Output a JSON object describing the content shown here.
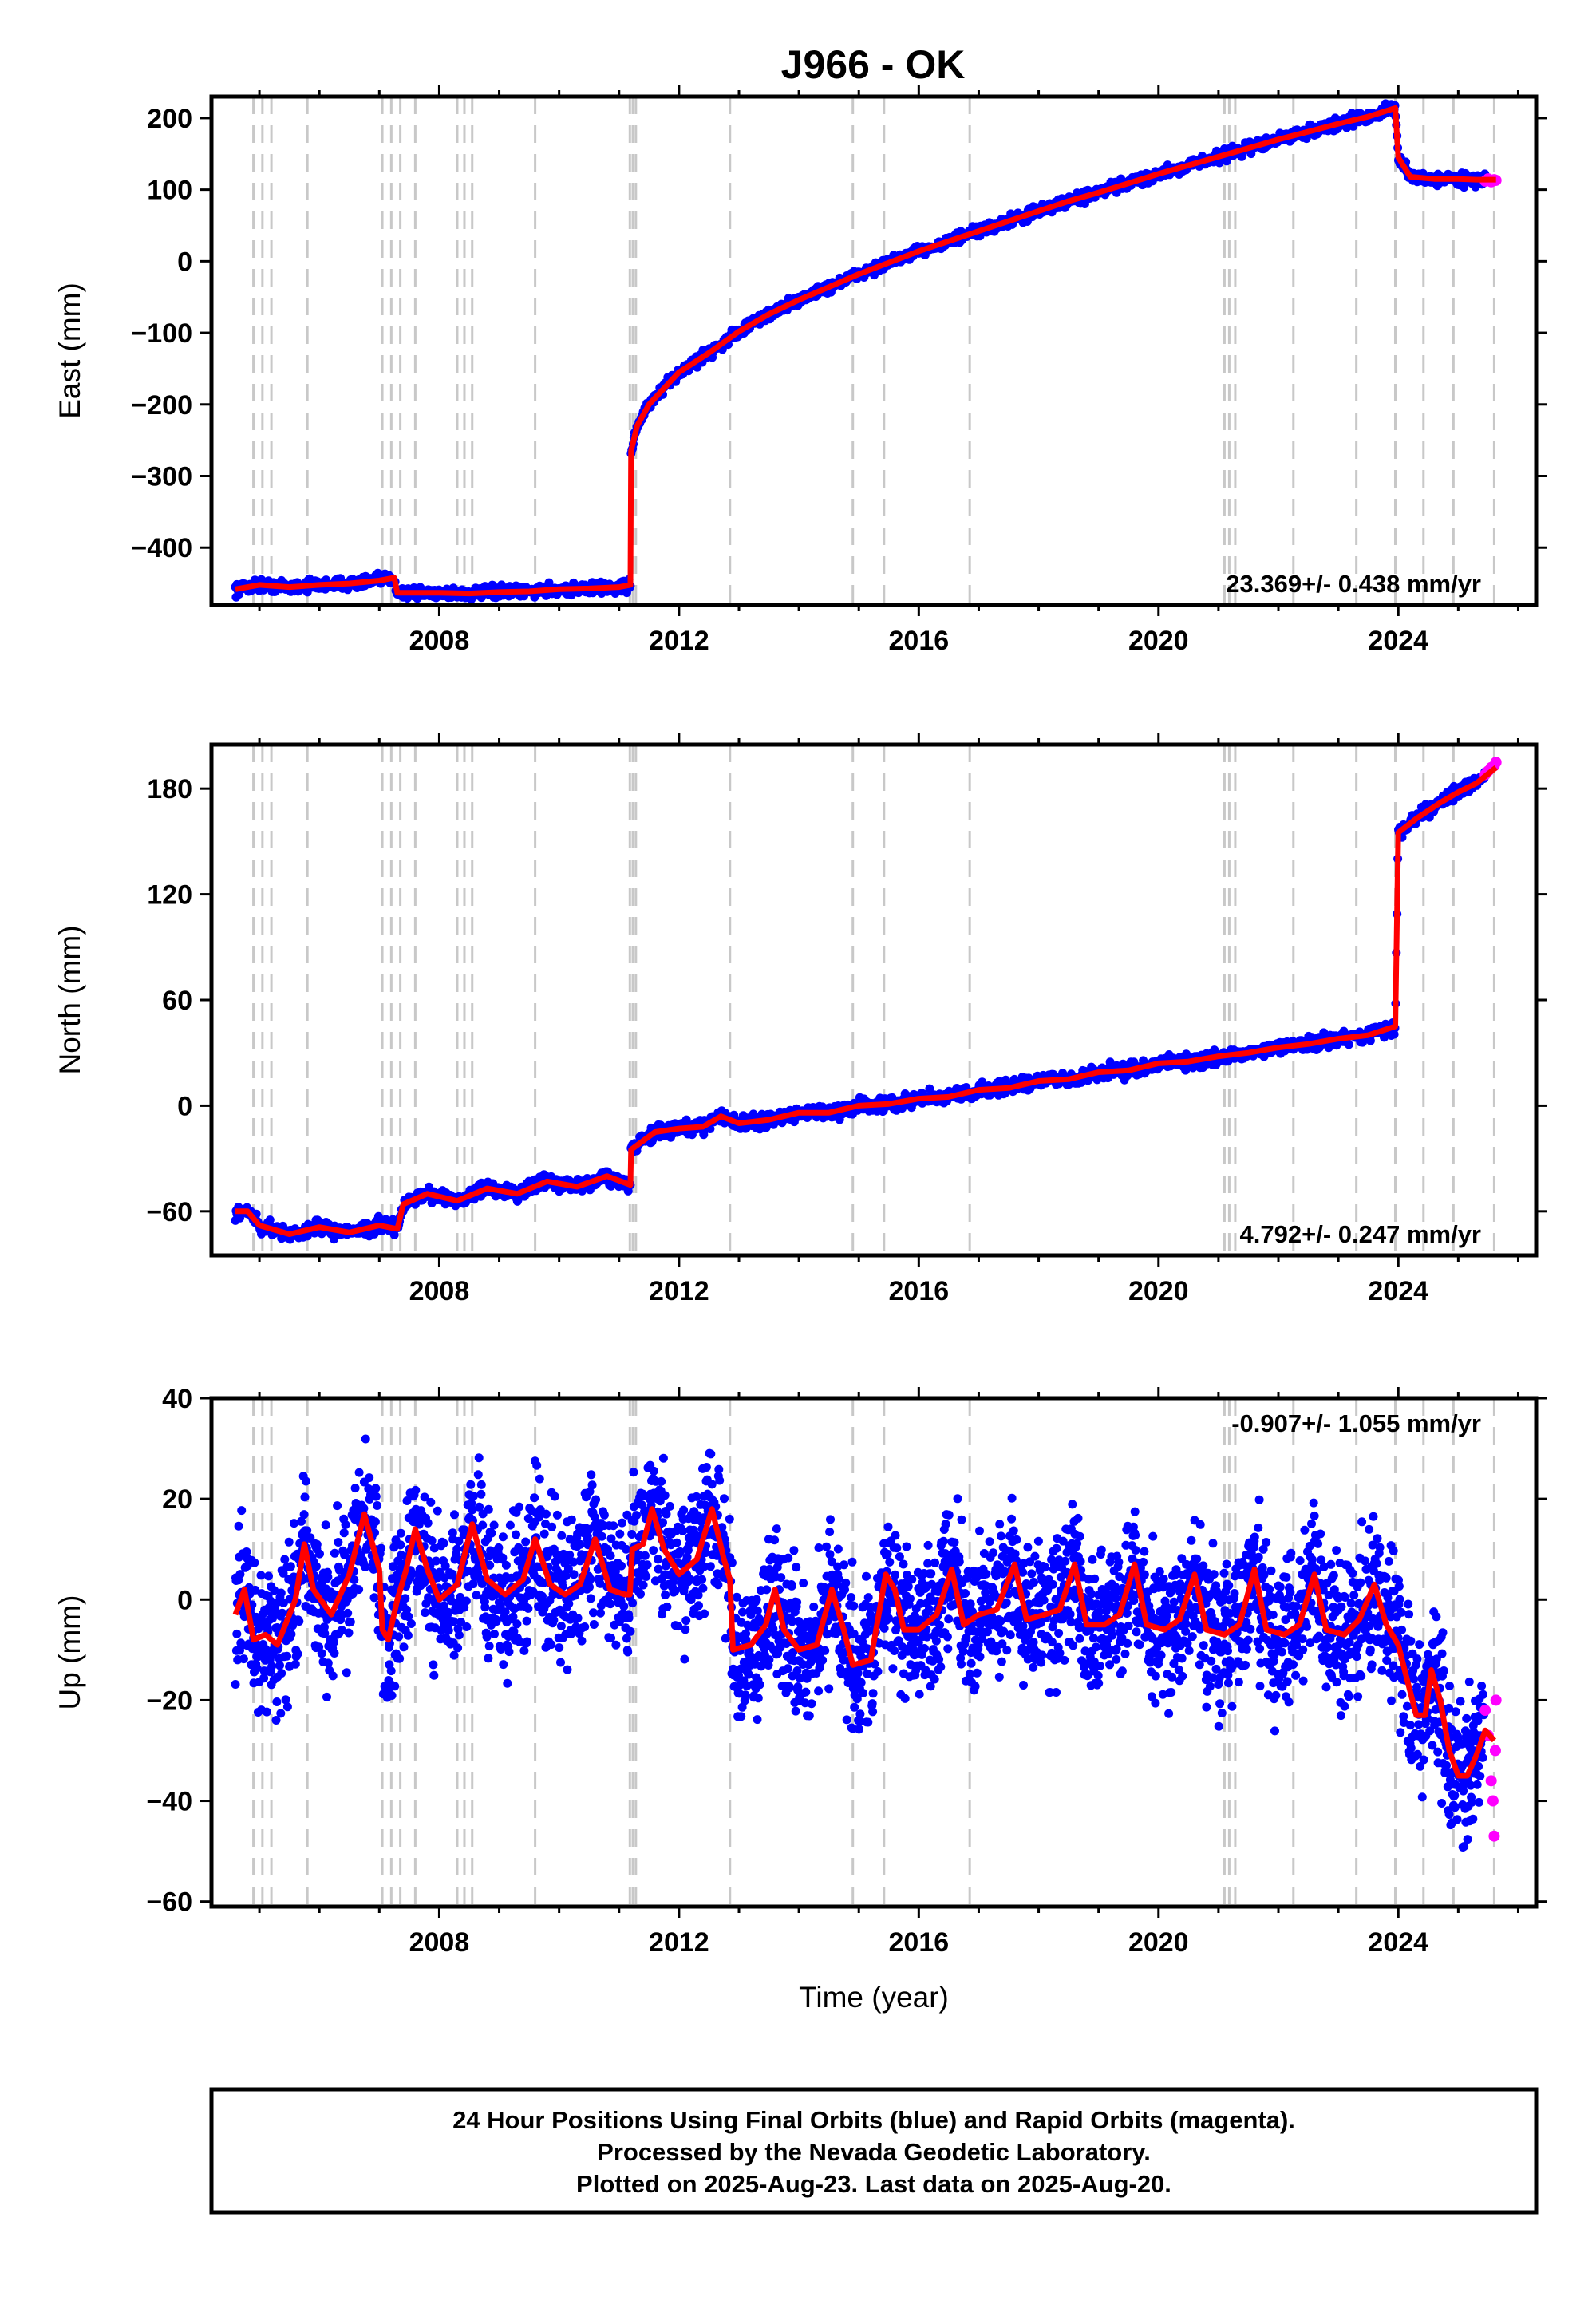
{
  "title": "J966 - OK",
  "footer": {
    "line1": "24 Hour Positions Using Final Orbits (blue) and Rapid Orbits (magenta).",
    "line2": "Processed by the Nevada Geodetic Laboratory.",
    "line3": "Plotted on 2025-Aug-23. Last data on 2025-Aug-20."
  },
  "colors": {
    "final_points": "#0000ff",
    "rapid_points": "#ff00ff",
    "model_fit": "#ff0000",
    "event_lines": "#c8c8c8"
  },
  "chart_data": [
    {
      "type": "scatter",
      "component": "East",
      "ylabel": "East (mm)",
      "xlabel": "",
      "xlim": [
        2004.2,
        2026.3
      ],
      "ylim": [
        -480,
        230
      ],
      "yticks": [
        -400,
        -300,
        -200,
        -100,
        0,
        100,
        200
      ],
      "xticks": [
        2008,
        2012,
        2016,
        2020,
        2024
      ],
      "grid": false,
      "rate_text": "23.369+/- 0.438 mm/yr",
      "rate_position": "bottom-right",
      "fit": [
        [
          2004.6,
          -458
        ],
        [
          2005.0,
          -452
        ],
        [
          2005.5,
          -455
        ],
        [
          2006.0,
          -452
        ],
        [
          2006.5,
          -450
        ],
        [
          2007.0,
          -446
        ],
        [
          2007.25,
          -442
        ],
        [
          2007.3,
          -463
        ],
        [
          2008.0,
          -463
        ],
        [
          2008.5,
          -464
        ],
        [
          2009.0,
          -462
        ],
        [
          2009.5,
          -461
        ],
        [
          2010.0,
          -458
        ],
        [
          2010.5,
          -457
        ],
        [
          2011.0,
          -455
        ],
        [
          2011.19,
          -452
        ],
        [
          2011.2,
          -265
        ],
        [
          2011.3,
          -230
        ],
        [
          2011.5,
          -200
        ],
        [
          2012.0,
          -155
        ],
        [
          2012.5,
          -128
        ],
        [
          2013.0,
          -98
        ],
        [
          2013.5,
          -74
        ],
        [
          2014.0,
          -54
        ],
        [
          2014.5,
          -36
        ],
        [
          2015.0,
          -18
        ],
        [
          2015.5,
          -2
        ],
        [
          2016.0,
          14
        ],
        [
          2016.5,
          28
        ],
        [
          2017.0,
          42
        ],
        [
          2017.5,
          56
        ],
        [
          2018.0,
          70
        ],
        [
          2018.5,
          84
        ],
        [
          2019.0,
          96
        ],
        [
          2019.5,
          109
        ],
        [
          2020.0,
          122
        ],
        [
          2020.5,
          134
        ],
        [
          2021.0,
          146
        ],
        [
          2021.5,
          158
        ],
        [
          2022.0,
          170
        ],
        [
          2022.5,
          181
        ],
        [
          2023.0,
          192
        ],
        [
          2023.5,
          202
        ],
        [
          2023.95,
          214
        ],
        [
          2024.0,
          145
        ],
        [
          2024.2,
          118
        ],
        [
          2024.6,
          115
        ],
        [
          2025.0,
          115
        ],
        [
          2025.3,
          114
        ],
        [
          2025.63,
          114
        ]
      ],
      "band_halfwidth_mm": 4,
      "rapid_points": [
        [
          2025.45,
          112
        ],
        [
          2025.5,
          115
        ],
        [
          2025.55,
          111
        ],
        [
          2025.6,
          114
        ],
        [
          2025.63,
          113
        ]
      ],
      "event_lines": [
        2004.9,
        2005.05,
        2005.2,
        2005.8,
        2007.05,
        2007.2,
        2007.35,
        2007.6,
        2008.3,
        2008.42,
        2008.55,
        2009.6,
        2011.18,
        2011.23,
        2011.28,
        2012.85,
        2014.9,
        2015.42,
        2016.85,
        2021.1,
        2021.18,
        2021.28,
        2022.25,
        2023.3,
        2023.95,
        2024.42,
        2024.92,
        2025.6
      ]
    },
    {
      "type": "scatter",
      "component": "North",
      "ylabel": "North (mm)",
      "xlabel": "",
      "xlim": [
        2004.2,
        2026.3
      ],
      "ylim": [
        -85,
        205
      ],
      "yticks": [
        -60,
        0,
        60,
        120,
        180
      ],
      "xticks": [
        2008,
        2012,
        2016,
        2020,
        2024
      ],
      "grid": false,
      "rate_text": "4.792+/- 0.247 mm/yr",
      "rate_position": "bottom-right",
      "fit": [
        [
          2004.6,
          -60
        ],
        [
          2004.8,
          -60
        ],
        [
          2005.0,
          -68
        ],
        [
          2005.5,
          -73
        ],
        [
          2006.0,
          -69
        ],
        [
          2006.5,
          -72
        ],
        [
          2007.0,
          -68
        ],
        [
          2007.3,
          -70
        ],
        [
          2007.4,
          -56
        ],
        [
          2007.8,
          -50
        ],
        [
          2008.3,
          -54
        ],
        [
          2008.8,
          -47
        ],
        [
          2009.3,
          -50
        ],
        [
          2009.8,
          -43
        ],
        [
          2010.3,
          -46
        ],
        [
          2010.8,
          -40
        ],
        [
          2011.19,
          -45
        ],
        [
          2011.2,
          -25
        ],
        [
          2011.6,
          -15
        ],
        [
          2012.0,
          -13
        ],
        [
          2012.4,
          -12
        ],
        [
          2012.7,
          -6
        ],
        [
          2012.85,
          -8
        ],
        [
          2013.0,
          -10
        ],
        [
          2013.5,
          -8
        ],
        [
          2014.0,
          -4
        ],
        [
          2014.5,
          -4
        ],
        [
          2015.0,
          0
        ],
        [
          2015.5,
          1
        ],
        [
          2016.0,
          4
        ],
        [
          2016.5,
          5
        ],
        [
          2017.0,
          9
        ],
        [
          2017.5,
          10
        ],
        [
          2018.0,
          14
        ],
        [
          2018.5,
          15
        ],
        [
          2019.0,
          19
        ],
        [
          2019.5,
          20
        ],
        [
          2020.0,
          24
        ],
        [
          2020.5,
          25
        ],
        [
          2021.0,
          28
        ],
        [
          2021.5,
          30
        ],
        [
          2022.0,
          33
        ],
        [
          2022.5,
          35
        ],
        [
          2023.0,
          38
        ],
        [
          2023.5,
          40
        ],
        [
          2023.95,
          45
        ],
        [
          2024.0,
          155
        ],
        [
          2024.3,
          163
        ],
        [
          2024.7,
          172
        ],
        [
          2025.0,
          178
        ],
        [
          2025.3,
          183
        ],
        [
          2025.63,
          192
        ]
      ],
      "band_halfwidth_mm": 2,
      "rapid_points": [
        [
          2025.45,
          188
        ],
        [
          2025.5,
          190
        ],
        [
          2025.55,
          192
        ],
        [
          2025.6,
          193
        ],
        [
          2025.63,
          195
        ]
      ],
      "event_lines": [
        2004.9,
        2005.05,
        2005.2,
        2005.8,
        2007.05,
        2007.2,
        2007.35,
        2007.6,
        2008.3,
        2008.42,
        2008.55,
        2009.6,
        2011.18,
        2011.23,
        2011.28,
        2012.85,
        2014.9,
        2015.42,
        2016.85,
        2021.1,
        2021.18,
        2021.28,
        2022.25,
        2023.3,
        2023.95,
        2024.42,
        2024.92,
        2025.6
      ]
    },
    {
      "type": "scatter",
      "component": "Up",
      "ylabel": "Up (mm)",
      "xlabel": "Time (year)",
      "xlim": [
        2004.2,
        2026.3
      ],
      "ylim": [
        -61,
        40
      ],
      "yticks": [
        -60,
        -40,
        -20,
        0,
        20,
        40
      ],
      "xticks": [
        2008,
        2012,
        2016,
        2020,
        2024
      ],
      "grid": false,
      "rate_text": "-0.907+/- 1.055 mm/yr",
      "rate_position": "top-right",
      "fit": [
        [
          2004.6,
          -3
        ],
        [
          2004.75,
          2
        ],
        [
          2004.9,
          -8
        ],
        [
          2005.1,
          -7
        ],
        [
          2005.3,
          -9
        ],
        [
          2005.6,
          0
        ],
        [
          2005.75,
          11
        ],
        [
          2005.9,
          2
        ],
        [
          2006.2,
          -3
        ],
        [
          2006.5,
          5
        ],
        [
          2006.75,
          17
        ],
        [
          2007.0,
          6
        ],
        [
          2007.05,
          -6
        ],
        [
          2007.15,
          -8
        ],
        [
          2007.3,
          0
        ],
        [
          2007.45,
          6
        ],
        [
          2007.6,
          14
        ],
        [
          2007.8,
          6
        ],
        [
          2008.0,
          0
        ],
        [
          2008.3,
          3
        ],
        [
          2008.55,
          15
        ],
        [
          2008.8,
          4
        ],
        [
          2009.1,
          1
        ],
        [
          2009.4,
          4
        ],
        [
          2009.6,
          12
        ],
        [
          2009.85,
          3
        ],
        [
          2010.1,
          1
        ],
        [
          2010.35,
          3
        ],
        [
          2010.6,
          12
        ],
        [
          2010.85,
          2
        ],
        [
          2011.1,
          1
        ],
        [
          2011.18,
          1
        ],
        [
          2011.22,
          10
        ],
        [
          2011.4,
          11
        ],
        [
          2011.55,
          18
        ],
        [
          2011.75,
          10
        ],
        [
          2012.0,
          5
        ],
        [
          2012.3,
          8
        ],
        [
          2012.55,
          18
        ],
        [
          2012.75,
          8
        ],
        [
          2012.85,
          4
        ],
        [
          2012.9,
          -10
        ],
        [
          2013.2,
          -9
        ],
        [
          2013.45,
          -5
        ],
        [
          2013.6,
          2
        ],
        [
          2013.75,
          -6
        ],
        [
          2014.0,
          -10
        ],
        [
          2014.3,
          -9
        ],
        [
          2014.55,
          2
        ],
        [
          2014.75,
          -6
        ],
        [
          2014.9,
          -13
        ],
        [
          2015.2,
          -12
        ],
        [
          2015.45,
          5
        ],
        [
          2015.6,
          2
        ],
        [
          2015.75,
          -6
        ],
        [
          2016.0,
          -6
        ],
        [
          2016.3,
          -3
        ],
        [
          2016.55,
          6
        ],
        [
          2016.75,
          -5
        ],
        [
          2017.0,
          -3
        ],
        [
          2017.3,
          -2
        ],
        [
          2017.6,
          7
        ],
        [
          2017.8,
          -4
        ],
        [
          2018.1,
          -3
        ],
        [
          2018.35,
          -2
        ],
        [
          2018.6,
          7
        ],
        [
          2018.8,
          -5
        ],
        [
          2019.1,
          -5
        ],
        [
          2019.35,
          -3
        ],
        [
          2019.6,
          7
        ],
        [
          2019.8,
          -5
        ],
        [
          2020.1,
          -6
        ],
        [
          2020.35,
          -4
        ],
        [
          2020.6,
          5
        ],
        [
          2020.8,
          -6
        ],
        [
          2021.1,
          -7
        ],
        [
          2021.35,
          -5
        ],
        [
          2021.6,
          6
        ],
        [
          2021.8,
          -6
        ],
        [
          2022.1,
          -7
        ],
        [
          2022.35,
          -5
        ],
        [
          2022.6,
          5
        ],
        [
          2022.8,
          -6
        ],
        [
          2023.1,
          -7
        ],
        [
          2023.35,
          -4
        ],
        [
          2023.6,
          3
        ],
        [
          2023.8,
          -5
        ],
        [
          2024.0,
          -9
        ],
        [
          2024.15,
          -16
        ],
        [
          2024.3,
          -23
        ],
        [
          2024.45,
          -23
        ],
        [
          2024.55,
          -14
        ],
        [
          2024.7,
          -20
        ],
        [
          2024.85,
          -30
        ],
        [
          2025.0,
          -35
        ],
        [
          2025.15,
          -35
        ],
        [
          2025.3,
          -31
        ],
        [
          2025.45,
          -26
        ],
        [
          2025.6,
          -28
        ]
      ],
      "band_halfwidth_mm": 7,
      "rapid_points": [
        [
          2025.45,
          -22
        ],
        [
          2025.5,
          -27
        ],
        [
          2025.55,
          -36
        ],
        [
          2025.58,
          -40
        ],
        [
          2025.6,
          -47
        ],
        [
          2025.62,
          -30
        ],
        [
          2025.63,
          -20
        ]
      ],
      "event_lines": [
        2004.9,
        2005.05,
        2005.2,
        2005.8,
        2007.05,
        2007.2,
        2007.35,
        2007.6,
        2008.3,
        2008.42,
        2008.55,
        2009.6,
        2011.18,
        2011.23,
        2011.28,
        2012.85,
        2014.9,
        2015.42,
        2016.85,
        2021.1,
        2021.18,
        2021.28,
        2022.25,
        2023.3,
        2023.95,
        2024.42,
        2024.92,
        2025.6
      ]
    }
  ]
}
